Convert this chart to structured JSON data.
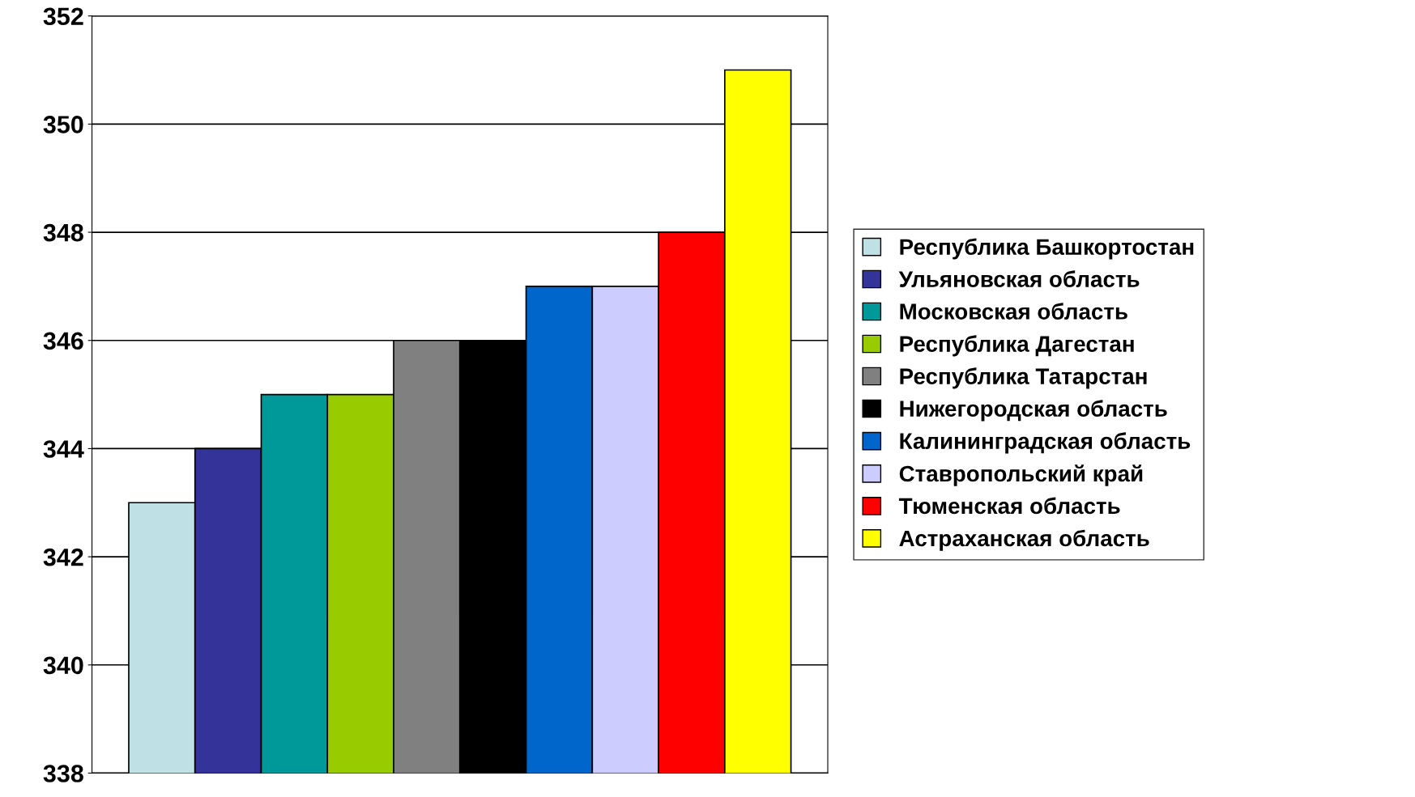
{
  "chart_data": {
    "type": "bar",
    "categories": [
      null
    ],
    "series": [
      {
        "name": "Республика Башкортостан",
        "color": "#bfe0e4",
        "values": [
          343
        ]
      },
      {
        "name": "Ульяновская область",
        "color": "#333399",
        "values": [
          344
        ]
      },
      {
        "name": "Московская область",
        "color": "#009999",
        "values": [
          345
        ]
      },
      {
        "name": "Республика Дагестан",
        "color": "#99cc00",
        "values": [
          345
        ]
      },
      {
        "name": "Республика Татарстан",
        "color": "#808080",
        "values": [
          346
        ]
      },
      {
        "name": "Нижегородская область",
        "color": "#000000",
        "values": [
          346
        ]
      },
      {
        "name": "Калининградская область",
        "color": "#0066cc",
        "values": [
          347
        ]
      },
      {
        "name": "Ставропольский край",
        "color": "#ccccff",
        "values": [
          347
        ]
      },
      {
        "name": "Тюменская область",
        "color": "#ff0000",
        "values": [
          348
        ]
      },
      {
        "name": "Астраханская область",
        "color": "#ffff00",
        "values": [
          351
        ]
      }
    ],
    "ylim": [
      338,
      352
    ],
    "yticks": [
      338,
      340,
      342,
      344,
      346,
      348,
      350,
      352
    ],
    "grid": "y",
    "legend": "right",
    "tick_labels": "y"
  }
}
